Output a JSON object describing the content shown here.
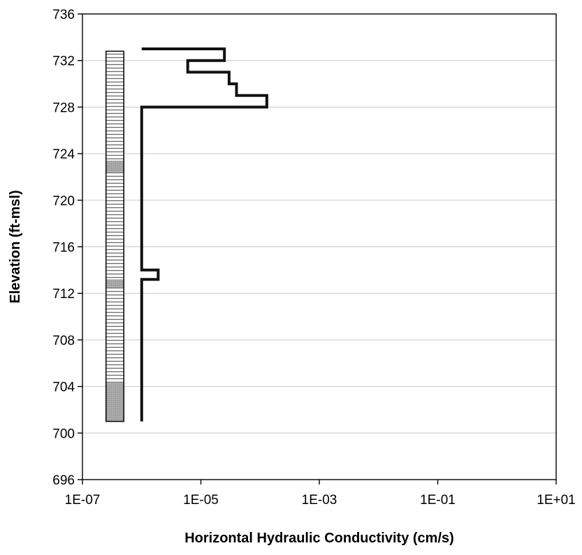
{
  "chart_data": {
    "type": "line",
    "title": "",
    "xlabel": "Horizontal Hydraulic Conductivity (cm/s)",
    "ylabel": "Elevation (ft-msl)",
    "x_scale": "log",
    "xlim": [
      1e-07,
      10
    ],
    "ylim": [
      696,
      736
    ],
    "x_ticks": [
      "1E-07",
      "1E-05",
      "1E-03",
      "1E-01",
      "1E+01"
    ],
    "y_ticks": [
      696,
      700,
      704,
      708,
      712,
      716,
      720,
      724,
      728,
      732,
      736
    ],
    "grid": "horizontal",
    "legend": "none",
    "series": [
      {
        "x": [
          1e-06,
          2.5e-05,
          2.5e-05,
          6e-06,
          6e-06,
          3e-05,
          3e-05,
          4e-05,
          4e-05,
          0.00013,
          0.00013,
          1e-06,
          1e-06,
          1.9e-06,
          1.9e-06,
          1e-06,
          1e-06
        ],
        "y": [
          733,
          733,
          732,
          732,
          731,
          731,
          730,
          730,
          729,
          729,
          728,
          728,
          714,
          714,
          713.2,
          713.2,
          701
        ]
      }
    ],
    "lithology_column": {
      "x_range": [
        2.5e-07,
        5e-07
      ],
      "top": 732.8,
      "bottom": 701,
      "layers": [
        {
          "top": 732.8,
          "bottom": 723.4,
          "pattern": "hatched"
        },
        {
          "top": 723.4,
          "bottom": 722.4,
          "pattern": "shaded"
        },
        {
          "top": 722.4,
          "bottom": 713.2,
          "pattern": "hatched"
        },
        {
          "top": 713.2,
          "bottom": 712.5,
          "pattern": "shaded"
        },
        {
          "top": 712.5,
          "bottom": 704.3,
          "pattern": "hatched"
        },
        {
          "top": 704.3,
          "bottom": 701,
          "pattern": "shaded"
        }
      ],
      "colors": {
        "shaded": "#a6a6a6",
        "hatch": "#6a6a6a"
      }
    },
    "line_color": "#111111",
    "grid_color": "#c8c8c8"
  }
}
